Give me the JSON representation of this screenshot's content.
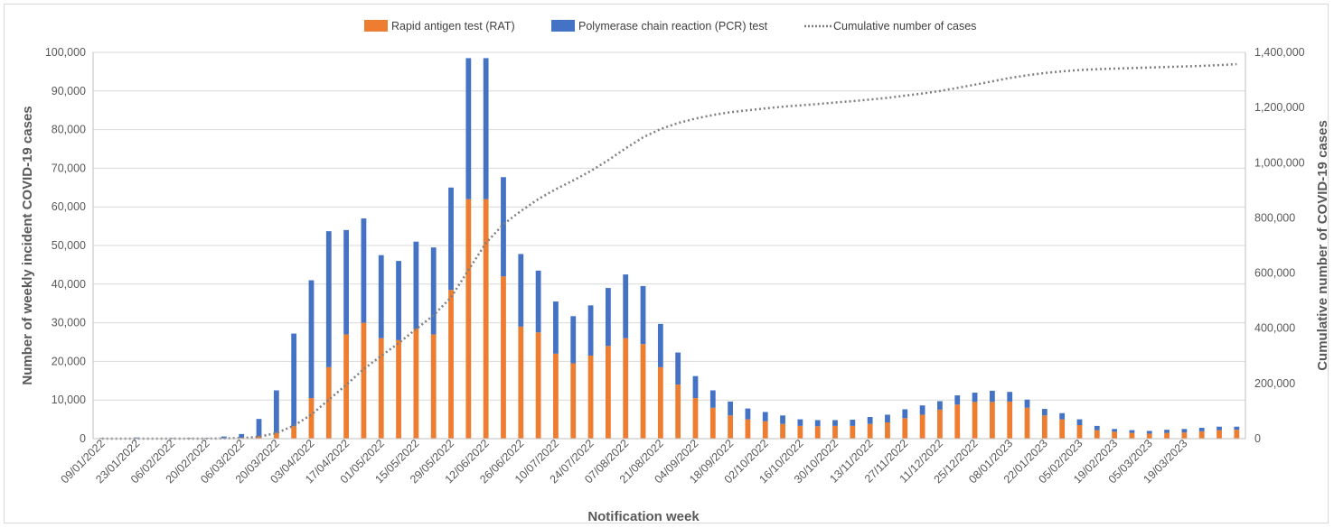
{
  "chart_data": {
    "type": "bar",
    "stacked": true,
    "xlabel": "Notification week",
    "ylabel": "Number of weekly incident COVID-19 cases",
    "y2label": "Cumulative number of COVID-19 cases",
    "ylim": [
      0,
      100000
    ],
    "y2lim": [
      0,
      1400000
    ],
    "y_ticks": [
      "0",
      "10,000",
      "20,000",
      "30,000",
      "40,000",
      "50,000",
      "60,000",
      "70,000",
      "80,000",
      "90,000",
      "100,000"
    ],
    "y2_ticks": [
      "0",
      "200,000",
      "400,000",
      "600,000",
      "800,000",
      "1,000,000",
      "1,200,000",
      "1,400,000"
    ],
    "grid": true,
    "legend_position": "top",
    "x_tick_labels": [
      "09/01/2022",
      "23/01/2022",
      "06/02/2022",
      "20/02/2022",
      "06/03/2022",
      "20/03/2022",
      "03/04/2022",
      "17/04/2022",
      "01/05/2022",
      "15/05/2022",
      "29/05/2022",
      "12/06/2022",
      "26/06/2022",
      "10/07/2022",
      "24/07/2022",
      "07/08/2022",
      "21/08/2022",
      "04/09/2022",
      "18/09/2022",
      "02/10/2022",
      "16/10/2022",
      "30/10/2022",
      "13/11/2022",
      "27/11/2022",
      "11/12/2022",
      "25/12/2022",
      "08/01/2023",
      "22/01/2023",
      "05/02/2023",
      "19/02/2023",
      "05/03/2023",
      "19/03/2023"
    ],
    "series": [
      {
        "name": "Rapid antigen test (RAT)",
        "color": "#ED7D31",
        "values": [
          0,
          0,
          0,
          0,
          0,
          0,
          0,
          50,
          200,
          600,
          1500,
          3200,
          10500,
          18500,
          27000,
          30000,
          26000,
          25500,
          28500,
          27000,
          38500,
          62000,
          62000,
          42000,
          29000,
          27500,
          22000,
          19500,
          21500,
          24000,
          26000,
          24500,
          18500,
          14000,
          10500,
          8000,
          6000,
          5000,
          4500,
          3800,
          3300,
          3200,
          3300,
          3300,
          3800,
          4200,
          5300,
          6200,
          7500,
          8800,
          9500,
          9500,
          9600,
          8000,
          6000,
          5000,
          3500,
          2200,
          1800,
          1500,
          1300,
          1500,
          1600,
          1900,
          2200,
          2300
        ]
      },
      {
        "name": "Polymerase chain reaction (PCR) test",
        "color": "#4472C4",
        "values": [
          200,
          100,
          300,
          100,
          200,
          200,
          200,
          500,
          1000,
          4500,
          11000,
          24000,
          30500,
          35200,
          27000,
          27000,
          21500,
          20500,
          22500,
          22500,
          26500,
          36500,
          36500,
          25700,
          18800,
          16000,
          13500,
          12200,
          13000,
          15000,
          16500,
          15000,
          11200,
          8300,
          5700,
          4500,
          3600,
          2800,
          2400,
          2200,
          1700,
          1600,
          1500,
          1600,
          1800,
          2000,
          2300,
          2400,
          2200,
          2400,
          2400,
          2900,
          2500,
          2100,
          1700,
          1600,
          1500,
          1100,
          700,
          700,
          700,
          800,
          900,
          900,
          900,
          800
        ]
      },
      {
        "name": "Cumulative number of cases",
        "color": "#7F7F7F",
        "line_style": "dotted",
        "values": [
          0,
          0,
          0,
          0,
          0,
          0,
          0,
          1000,
          2000,
          7000,
          20000,
          47000,
          87000,
          141000,
          195000,
          252000,
          300000,
          346000,
          397000,
          447000,
          512000,
          611000,
          709000,
          777000,
          825000,
          868000,
          904000,
          936000,
          970000,
          1009000,
          1052000,
          1092000,
          1122000,
          1144000,
          1160000,
          1173000,
          1183000,
          1190000,
          1197000,
          1203000,
          1208000,
          1213000,
          1218000,
          1223000,
          1229000,
          1235000,
          1243000,
          1251000,
          1260000,
          1271000,
          1283000,
          1295000,
          1307000,
          1317000,
          1325000,
          1331000,
          1336000,
          1339000,
          1341000,
          1343000,
          1345000,
          1347000,
          1349000,
          1351000,
          1354000,
          1357000
        ]
      }
    ]
  }
}
